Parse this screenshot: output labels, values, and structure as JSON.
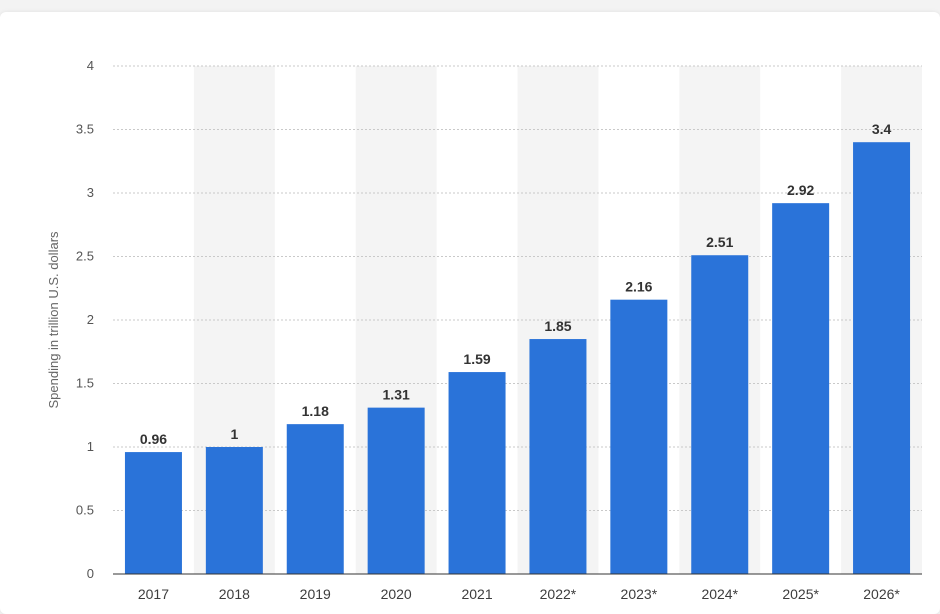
{
  "chart_data": {
    "type": "bar",
    "categories": [
      "2017",
      "2018",
      "2019",
      "2020",
      "2021",
      "2022*",
      "2023*",
      "2024*",
      "2025*",
      "2026*"
    ],
    "values": [
      0.96,
      1,
      1.18,
      1.31,
      1.59,
      1.85,
      2.16,
      2.51,
      2.92,
      3.4
    ],
    "value_labels": [
      "0.96",
      "1",
      "1.18",
      "1.31",
      "1.59",
      "1.85",
      "2.16",
      "2.51",
      "2.92",
      "3.4"
    ],
    "ylabel": "Spending in trillion U.S. dollars",
    "xlabel": "",
    "ylim": [
      0,
      4
    ],
    "yticks": [
      "0",
      "0.5",
      "1",
      "1.5",
      "2",
      "2.5",
      "3",
      "3.5",
      "4"
    ],
    "grid": true,
    "bar_color": "#2a73d9",
    "band_color": "#f4f4f4",
    "gridline_color": "#c9c9c9"
  }
}
